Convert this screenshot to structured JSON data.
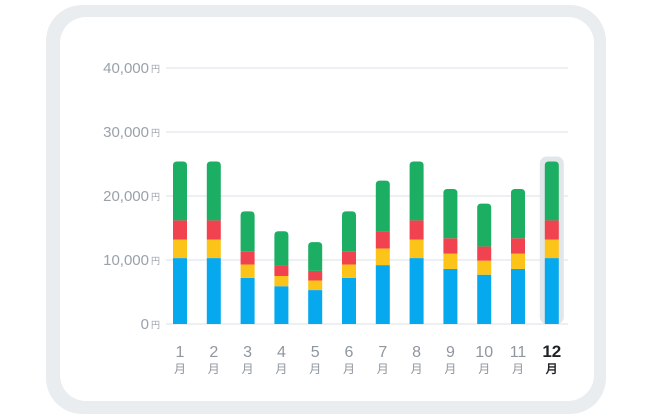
{
  "chart_data": {
    "type": "bar",
    "stacked": true,
    "ylim": [
      0,
      40000
    ],
    "yticks": [
      {
        "value": 40000,
        "label": "40,000",
        "unit": "円"
      },
      {
        "value": 30000,
        "label": "30,000",
        "unit": "円"
      },
      {
        "value": 20000,
        "label": "20,000",
        "unit": "円"
      },
      {
        "value": 10000,
        "label": "10,000",
        "unit": "円"
      },
      {
        "value": 0,
        "label": "0",
        "unit": "円"
      }
    ],
    "categories": [
      {
        "num": "1",
        "unit": "月"
      },
      {
        "num": "2",
        "unit": "月"
      },
      {
        "num": "3",
        "unit": "月"
      },
      {
        "num": "4",
        "unit": "月"
      },
      {
        "num": "5",
        "unit": "月"
      },
      {
        "num": "6",
        "unit": "月"
      },
      {
        "num": "7",
        "unit": "月"
      },
      {
        "num": "8",
        "unit": "月"
      },
      {
        "num": "9",
        "unit": "月"
      },
      {
        "num": "10",
        "unit": "月"
      },
      {
        "num": "11",
        "unit": "月"
      },
      {
        "num": "12",
        "unit": "月"
      }
    ],
    "selected_index": 11,
    "series": [
      {
        "color": "#06a9ee",
        "values": [
          10300,
          10300,
          7200,
          5900,
          5300,
          7200,
          9200,
          10300,
          8600,
          7700,
          8600,
          10300
        ]
      },
      {
        "color": "#fcc419",
        "values": [
          2900,
          2900,
          2100,
          1600,
          1500,
          2100,
          2600,
          2900,
          2400,
          2200,
          2400,
          2900
        ]
      },
      {
        "color": "#f0424f",
        "values": [
          3000,
          3000,
          2000,
          1700,
          1500,
          2000,
          2600,
          3000,
          2400,
          2200,
          2400,
          3000
        ]
      },
      {
        "color": "#1cae62",
        "values": [
          9200,
          9200,
          6300,
          5300,
          4500,
          6300,
          8000,
          9200,
          7700,
          6700,
          7700,
          9200
        ]
      }
    ],
    "grid": true,
    "colors": {
      "grid": "#e2e6ea",
      "selection_highlight": "#e3e6e9"
    }
  }
}
